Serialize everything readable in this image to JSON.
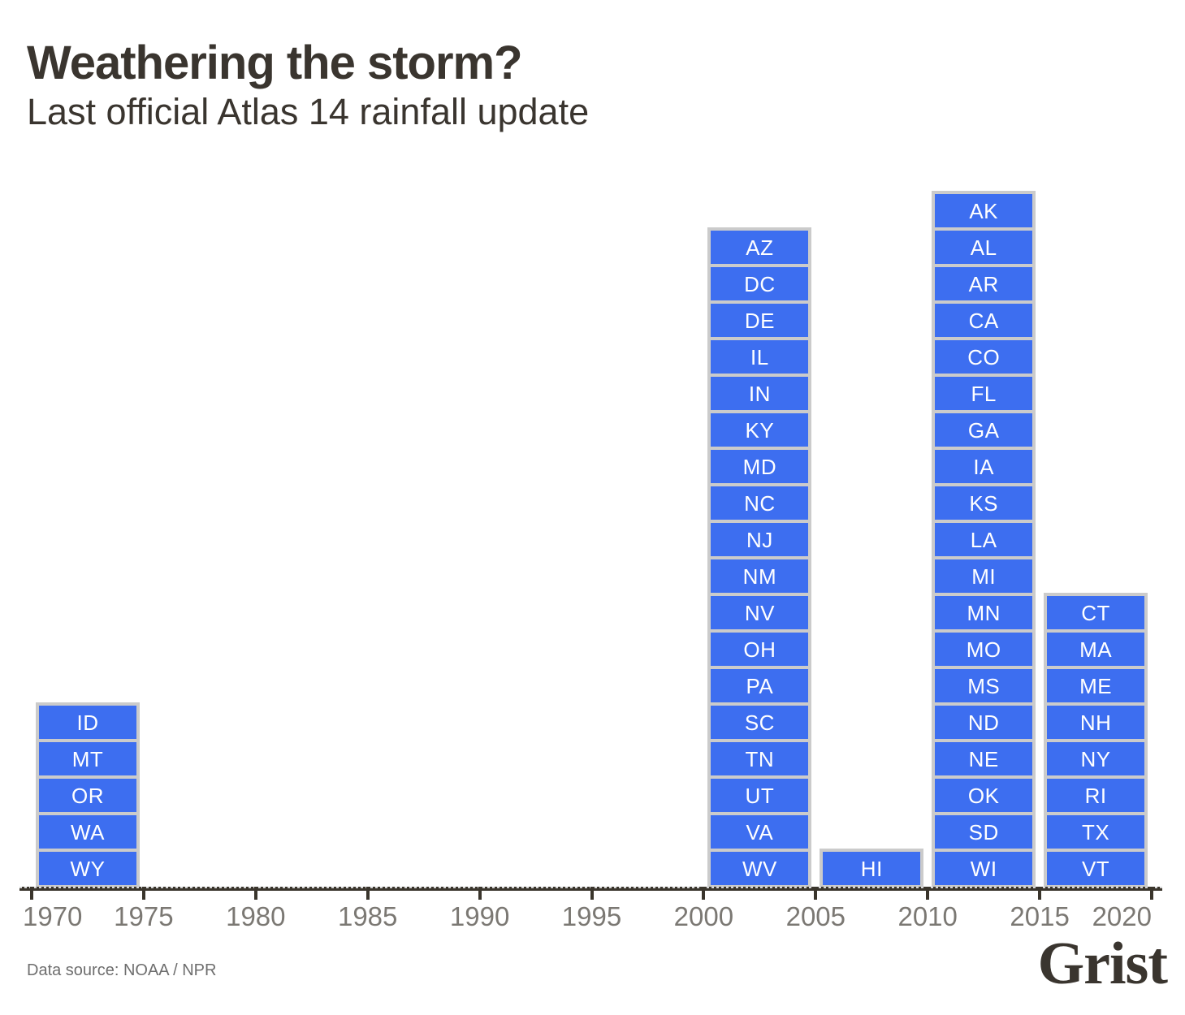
{
  "title": "Weathering the storm?",
  "subtitle": "Last official Atlas 14 rainfall update",
  "footer": {
    "source": "Data source: NOAA / NPR",
    "logo": "Grist"
  },
  "colors": {
    "bar_fill": "#3d6ef0",
    "bar_frame": "#cbcbcb",
    "bar_text": "#ffffff",
    "axis": "#3a352c",
    "axis_dash": "#d6d6d6",
    "tick_label": "#7b7873",
    "heading_text": "#3a352f",
    "source_text": "#6e6e6e",
    "background": "#ffffff"
  },
  "chart_data": {
    "type": "bar",
    "variant": "stacked-state-timeline",
    "title": "Weathering the storm?",
    "subtitle": "Last official Atlas 14 rainfall update",
    "xlabel": "",
    "ylabel": "",
    "grid": false,
    "legend": "none",
    "x_axis": {
      "range_years": [
        1970,
        2020
      ],
      "tick_step": 5,
      "tick_labels": [
        "1970",
        "1975",
        "1980",
        "1985",
        "1990",
        "1995",
        "2000",
        "2005",
        "2010",
        "2015",
        "2020"
      ]
    },
    "unit": "states per five-year period (bar height = number of states)",
    "groups": [
      {
        "period_start": 1970,
        "period_end": 1975,
        "count": 5,
        "states": [
          "ID",
          "MT",
          "OR",
          "WA",
          "WY"
        ]
      },
      {
        "period_start": 2000,
        "period_end": 2005,
        "count": 18,
        "states": [
          "AZ",
          "DC",
          "DE",
          "IL",
          "IN",
          "KY",
          "MD",
          "NC",
          "NJ",
          "NM",
          "NV",
          "OH",
          "PA",
          "SC",
          "TN",
          "UT",
          "VA",
          "WV"
        ]
      },
      {
        "period_start": 2005,
        "period_end": 2010,
        "count": 1,
        "states": [
          "HI"
        ]
      },
      {
        "period_start": 2010,
        "period_end": 2015,
        "count": 19,
        "states": [
          "AK",
          "AL",
          "AR",
          "CA",
          "CO",
          "FL",
          "GA",
          "IA",
          "KS",
          "LA",
          "MI",
          "MN",
          "MO",
          "MS",
          "ND",
          "NE",
          "OK",
          "SD",
          "WI"
        ]
      },
      {
        "period_start": 2015,
        "period_end": 2020,
        "count": 8,
        "states": [
          "CT",
          "MA",
          "ME",
          "NH",
          "NY",
          "RI",
          "TX",
          "VT"
        ]
      }
    ]
  }
}
